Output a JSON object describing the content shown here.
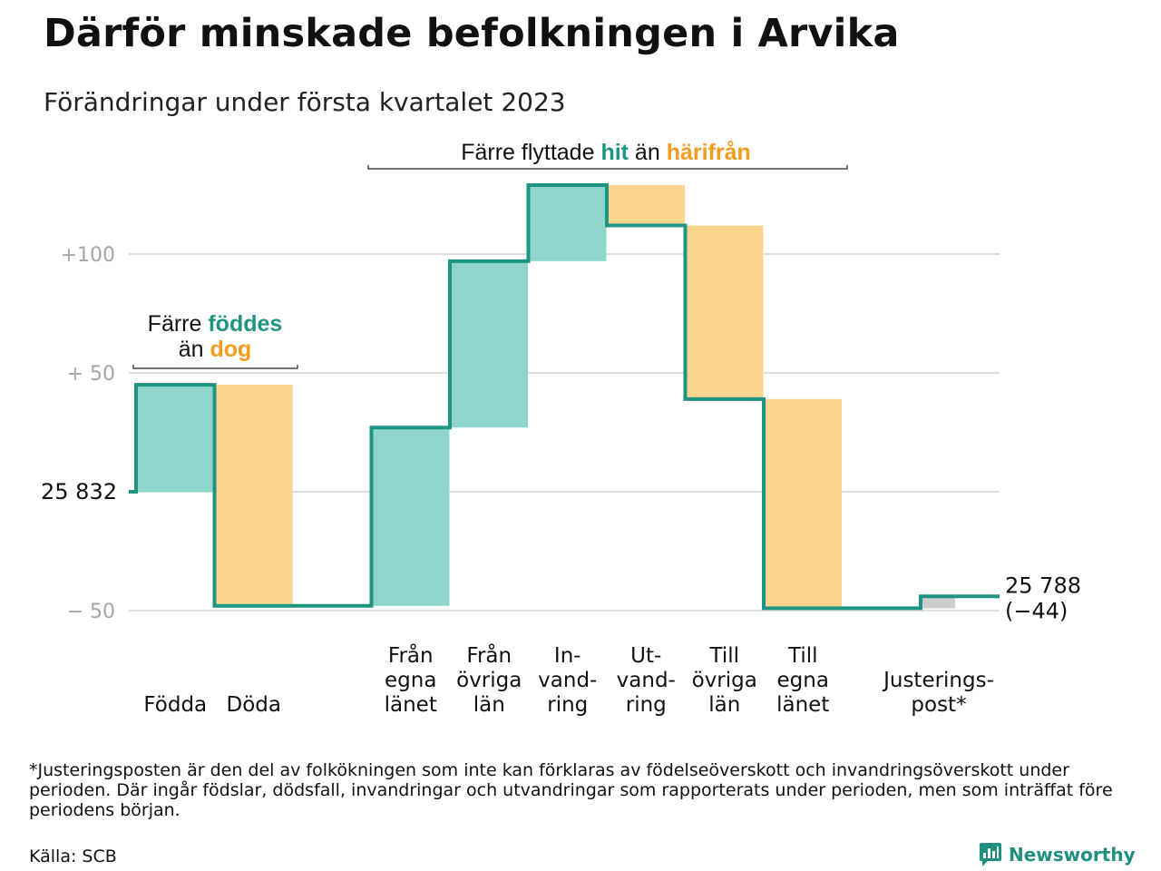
{
  "title": "Därför minskade befolkningen i Arvika",
  "subtitle": "Förändringar under första kvartalet 2023",
  "chart_data": {
    "type": "waterfall",
    "start_label": "25 832",
    "end_label": "25 788",
    "end_change_label": "(−44)",
    "y_ticks": [
      {
        "value": 100,
        "label": "+100"
      },
      {
        "value": 50,
        "label": "+ 50"
      },
      {
        "value": -50,
        "label": "− 50"
      }
    ],
    "ylim": [
      -62,
      132
    ],
    "steps": [
      {
        "label_lines": [
          "Födda"
        ],
        "change": 45,
        "kind": "in"
      },
      {
        "label_lines": [
          "Döda"
        ],
        "change": -93,
        "kind": "out"
      },
      {
        "label_lines": [
          "Från",
          "egna",
          "länet"
        ],
        "change": 75,
        "kind": "in"
      },
      {
        "label_lines": [
          "Från",
          "övriga",
          "län"
        ],
        "change": 70,
        "kind": "in"
      },
      {
        "label_lines": [
          "In-",
          "vand-",
          "ring"
        ],
        "change": 32,
        "kind": "in"
      },
      {
        "label_lines": [
          "Ut-",
          "vand-",
          "ring"
        ],
        "change": -17,
        "kind": "out"
      },
      {
        "label_lines": [
          "Till",
          "övriga",
          "län"
        ],
        "change": -73,
        "kind": "out"
      },
      {
        "label_lines": [
          "Till",
          "egna",
          "länet"
        ],
        "change": -88,
        "kind": "out"
      },
      {
        "label_lines": [
          "Justerings-",
          "post*"
        ],
        "change": 5,
        "kind": "adjust"
      }
    ],
    "annotations": [
      {
        "id": "births",
        "parts": [
          {
            "line": 1,
            "text": "Färre ",
            "tone": "plain"
          },
          {
            "line": 1,
            "text": "föddes",
            "tone": "in"
          },
          {
            "line": 2,
            "text": "än ",
            "tone": "plain"
          },
          {
            "line": 2,
            "text": "dog",
            "tone": "out"
          }
        ]
      },
      {
        "id": "moves",
        "parts": [
          {
            "line": 1,
            "text": "Färre flyttade ",
            "tone": "plain"
          },
          {
            "line": 1,
            "text": "hit",
            "tone": "in"
          },
          {
            "line": 1,
            "text": " än ",
            "tone": "plain"
          },
          {
            "line": 1,
            "text": "härifrån",
            "tone": "out"
          }
        ]
      }
    ],
    "colors": {
      "in_fill": "#8ed6cc",
      "out_fill": "#fad58e",
      "adjust_fill": "#cccccc",
      "line": "#1e9582",
      "in_text": "#1e9582",
      "out_text": "#f39c1d",
      "grid": "#dddddd",
      "tick_text": "#a6a6a6"
    }
  },
  "footnote": "*Justeringsposten är den del av folkökningen som inte kan förklaras av födelseöverskott och invandringsöverskott under perioden. Där ingår födslar, dödsfall, invandringar och utvandringar som rapporterats under perioden, men som inträffat före periodens början.",
  "source": "Källa: SCB",
  "brand": {
    "name": "Newsworthy",
    "icon": "newsworthy-logo-icon",
    "color": "#1f8f80"
  }
}
